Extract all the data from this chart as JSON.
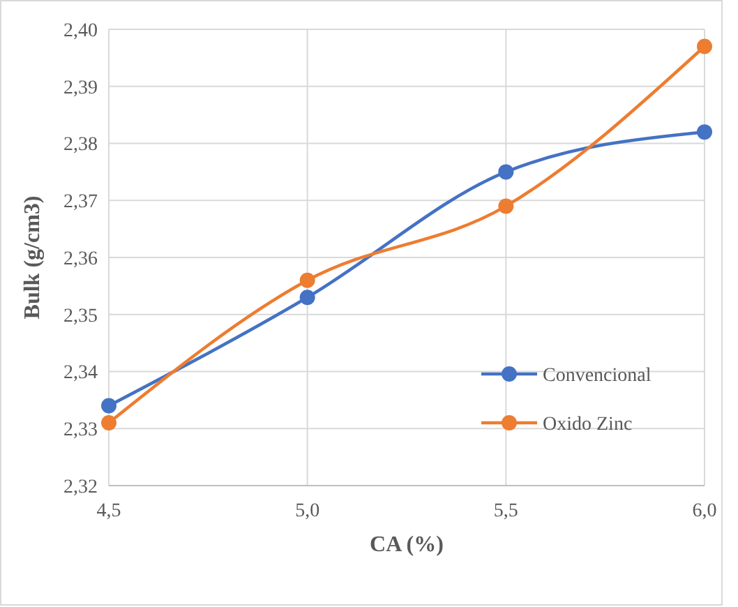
{
  "chart_data": {
    "type": "line",
    "xlabel": "CA (%)",
    "ylabel": "Bulk (g/cm3)",
    "x": [
      4.5,
      5.0,
      5.5,
      6.0
    ],
    "series": [
      {
        "name": "Convencional",
        "color": "#4472c4",
        "values": [
          2.334,
          2.353,
          2.375,
          2.382
        ]
      },
      {
        "name": "Oxido Zinc",
        "color": "#ed7d31",
        "values": [
          2.331,
          2.356,
          2.369,
          2.397
        ]
      }
    ],
    "xlim": [
      4.5,
      6.0
    ],
    "xticks": [
      {
        "value": 4.5,
        "label": "4,5"
      },
      {
        "value": 5.0,
        "label": "5,0"
      },
      {
        "value": 5.5,
        "label": "5,5"
      },
      {
        "value": 6.0,
        "label": "6,0"
      }
    ],
    "ylim": [
      2.32,
      2.4
    ],
    "yticks": [
      {
        "value": 2.32,
        "label": "2,32"
      },
      {
        "value": 2.33,
        "label": "2,33"
      },
      {
        "value": 2.34,
        "label": "2,34"
      },
      {
        "value": 2.35,
        "label": "2,35"
      },
      {
        "value": 2.36,
        "label": "2,36"
      },
      {
        "value": 2.37,
        "label": "2,37"
      },
      {
        "value": 2.38,
        "label": "2,38"
      },
      {
        "value": 2.39,
        "label": "2,39"
      },
      {
        "value": 2.4,
        "label": "2,40"
      }
    ],
    "grid": true,
    "legend": "bottom right",
    "marker": "circle",
    "line_style": "solid"
  }
}
